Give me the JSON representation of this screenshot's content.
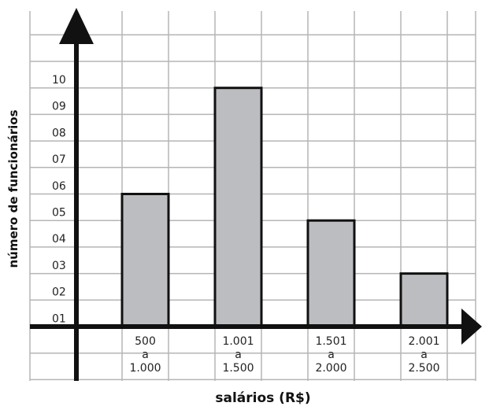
{
  "chart_data": {
    "type": "bar",
    "xlabel": "salários (R$)",
    "ylabel": "número de funcionários",
    "ylim": [
      0,
      10
    ],
    "yticks": [
      "01",
      "02",
      "03",
      "04",
      "05",
      "06",
      "07",
      "08",
      "09",
      "10"
    ],
    "categories": [
      {
        "lines": [
          "500",
          "a",
          "1.000"
        ]
      },
      {
        "lines": [
          "1.001",
          "a",
          "1.500"
        ]
      },
      {
        "lines": [
          "1.501",
          "a",
          "2.000"
        ]
      },
      {
        "lines": [
          "2.001",
          "a",
          "2.500"
        ]
      }
    ],
    "values": [
      5,
      9,
      4,
      2
    ],
    "grid": true,
    "bar_color": "#bcbdc0",
    "bar_edge_color": "#111111",
    "grid_color": "#b5b5b5",
    "axis_color": "#111111"
  }
}
